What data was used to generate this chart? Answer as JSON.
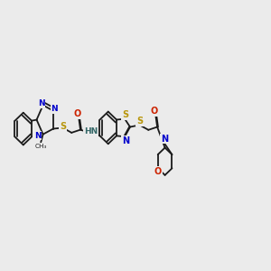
{
  "background_color": "#ebebeb",
  "fig_size": [
    3.0,
    3.0
  ],
  "dpi": 100,
  "xlim": [
    0.0,
    1.0
  ],
  "ylim": [
    0.25,
    0.85
  ]
}
